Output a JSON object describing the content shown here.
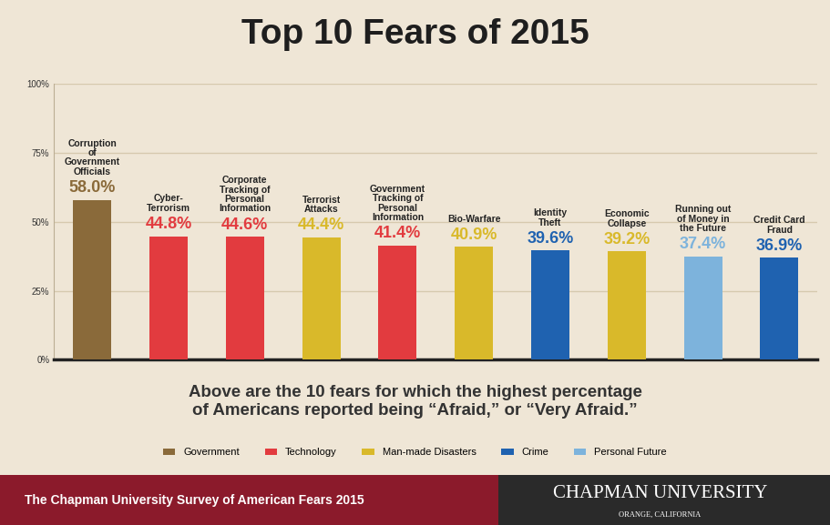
{
  "chart_data": {
    "type": "bar",
    "title": "Top 10 Fears of 2015",
    "caption": "Above are the 10 fears for which the highest percentage of Americans reported being “Afraid,” or “Very Afraid.”",
    "categories": [
      "Corruption of Government Officials",
      "Cyber-Terrorism",
      "Corporate Tracking of Personal Information",
      "Terrorist Attacks",
      "Government Tracking of Personal Information",
      "Bio-Warfare",
      "Identity Theft",
      "Economic Collapse",
      "Running out of Money in the Future",
      "Credit Card Fraud"
    ],
    "series": [
      {
        "name": "Government",
        "color": "#8a6a3a",
        "values": [
          58.0,
          null,
          null,
          null,
          null,
          null,
          null,
          null,
          null,
          null
        ],
        "value_labels": [
          "58.0%",
          null,
          null,
          null,
          null,
          null,
          null,
          null,
          null,
          null
        ]
      },
      {
        "name": "Technology",
        "color": "#e23b3f",
        "values": [
          null,
          44.8,
          44.6,
          null,
          41.4,
          null,
          null,
          null,
          null,
          null
        ],
        "value_labels": [
          null,
          "44.8%",
          "44.6%",
          null,
          "41.4%",
          null,
          null,
          null,
          null,
          null
        ]
      },
      {
        "name": "Man-made Disasters",
        "color": "#d9b92a",
        "values": [
          null,
          null,
          null,
          44.4,
          null,
          40.9,
          null,
          39.2,
          null,
          null
        ],
        "value_labels": [
          null,
          null,
          null,
          "44.4%",
          null,
          "40.9%",
          null,
          "39.2%",
          null,
          null
        ]
      },
      {
        "name": "Crime",
        "color": "#1f62b0",
        "values": [
          null,
          null,
          null,
          null,
          null,
          null,
          39.6,
          null,
          null,
          36.9
        ],
        "value_labels": [
          null,
          null,
          null,
          null,
          null,
          null,
          "39.6%",
          null,
          null,
          "36.9%"
        ]
      },
      {
        "name": "Personal Future",
        "color": "#7db3dc",
        "values": [
          null,
          null,
          null,
          null,
          null,
          null,
          null,
          null,
          37.4,
          null
        ],
        "value_labels": [
          null,
          null,
          null,
          null,
          null,
          null,
          null,
          null,
          "37.4%",
          null
        ]
      }
    ],
    "ylim": [
      0,
      100
    ],
    "yticks": [
      {
        "value": 0,
        "label": "0%"
      },
      {
        "value": 25,
        "label": "25%"
      },
      {
        "value": 50,
        "label": "50%"
      },
      {
        "value": 75,
        "label": "75%"
      },
      {
        "value": 100,
        "label": "100%"
      }
    ],
    "grid": true,
    "legend": "lower center",
    "data_labels": true,
    "tick_labels": "y",
    "footer": {
      "survey": "The Chapman University Survey of American Fears 2015",
      "university": "CHAPMAN UNIVERSITY",
      "location": "ORANGE, CALIFORNIA"
    }
  }
}
